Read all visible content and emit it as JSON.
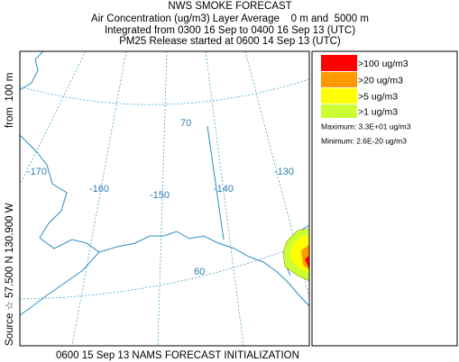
{
  "header": {
    "title": "NWS SMOKE FORECAST",
    "lines": [
      "Air Concentration (ug/m3) Layer Average    0 m and  5000 m",
      "Integrated from 0300 16 Sep to 0400 16 Sep 13 (UTC)",
      "PM25 Release started at 0600 14 Sep 13 (UTC)"
    ]
  },
  "source_label": "Source ☆ 57.500 N 130.900 W",
  "height_label": "from  100 m",
  "map": {
    "grid_labels": [
      "-170",
      "-160",
      "-150",
      "-140",
      "-130",
      "70",
      "60"
    ]
  },
  "legend": {
    "entries": [
      {
        "label": ">100 ug/m3",
        "color": "#ff0000"
      },
      {
        "label": ">20 ug/m3",
        "color": "#ff9900"
      },
      {
        "label": ">5 ug/m3",
        "color": "#ffff00"
      },
      {
        "label": ">1 ug/m3",
        "color": "#ccff33"
      }
    ],
    "maximum": "Maximum: 3.3E+01 ug/m3",
    "minimum": "Minimum: 2.6E-20 ug/m3"
  },
  "footer": "0600 15 Sep 13 NAMS FORECAST INITIALIZATION"
}
